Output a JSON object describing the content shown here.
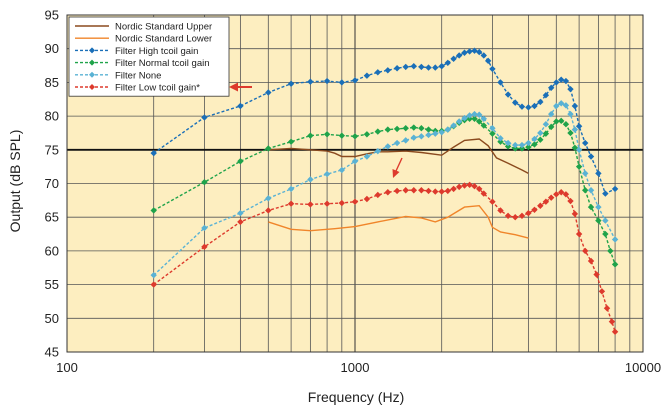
{
  "chart_data": {
    "type": "line",
    "xlabel": "Frequency (Hz)",
    "ylabel": "Output (dB SPL)",
    "x_scale": "log",
    "xlim": [
      100,
      10000
    ],
    "ylim": [
      45,
      95
    ],
    "x_ticks": [
      {
        "value": 100,
        "label": "100"
      },
      {
        "value": 1000,
        "label": "1000"
      },
      {
        "value": 10000,
        "label": "10000"
      }
    ],
    "y_ticks": [
      45,
      50,
      55,
      60,
      65,
      70,
      75,
      80,
      85,
      90,
      95
    ],
    "reference_line": 75,
    "grid": true,
    "legend_position": "top-left",
    "annotations": [
      "arrow-to-legend-low-tcoil",
      "arrow-to-low-tcoil-curve"
    ],
    "colors": {
      "plot_background": "#fdeec0",
      "nordic_upper": "#8b4a1e",
      "nordic_lower": "#f0852a",
      "high": "#1a6fb8",
      "normal": "#1fa34a",
      "none": "#5ab2d4",
      "low": "#dd3a2d",
      "arrow": "#dd3a2d"
    },
    "series": [
      {
        "name": "Nordic Standard Upper",
        "key": "nordic_upper",
        "style": "solid",
        "marker": "none",
        "points": [
          [
            500,
            75
          ],
          [
            600,
            75.2
          ],
          [
            700,
            75
          ],
          [
            800,
            74.8
          ],
          [
            850,
            74.5
          ],
          [
            900,
            74
          ],
          [
            1000,
            74
          ],
          [
            1100,
            74.4
          ],
          [
            1200,
            74.7
          ],
          [
            1300,
            74.7
          ],
          [
            1500,
            74.8
          ],
          [
            1700,
            74.6
          ],
          [
            2000,
            74.2
          ],
          [
            2200,
            75.4
          ],
          [
            2400,
            76.4
          ],
          [
            2700,
            76.6
          ],
          [
            2900,
            75.6
          ],
          [
            3100,
            73.8
          ],
          [
            3400,
            73
          ],
          [
            3800,
            72
          ],
          [
            4000,
            71.5
          ]
        ]
      },
      {
        "name": "Nordic Standard Lower",
        "key": "nordic_lower",
        "style": "solid",
        "marker": "none",
        "points": [
          [
            500,
            64.3
          ],
          [
            600,
            63.2
          ],
          [
            700,
            63
          ],
          [
            850,
            63.3
          ],
          [
            1000,
            63.6
          ],
          [
            1200,
            64.3
          ],
          [
            1500,
            65.1
          ],
          [
            1700,
            64.9
          ],
          [
            1900,
            64.3
          ],
          [
            2100,
            65
          ],
          [
            2400,
            66.5
          ],
          [
            2700,
            66.7
          ],
          [
            2900,
            65
          ],
          [
            3000,
            63.5
          ],
          [
            3200,
            62.8
          ],
          [
            3600,
            62.4
          ],
          [
            4000,
            61.9
          ]
        ]
      },
      {
        "name": "Filter High tcoil gain",
        "key": "high",
        "style": "dashed",
        "marker": "diamond",
        "points": [
          [
            200,
            74.5
          ],
          [
            300,
            79.8
          ],
          [
            400,
            81.5
          ],
          [
            500,
            83.5
          ],
          [
            600,
            84.8
          ],
          [
            700,
            85.1
          ],
          [
            800,
            85.2
          ],
          [
            900,
            85
          ],
          [
            1000,
            85.3
          ],
          [
            1100,
            86
          ],
          [
            1200,
            86.5
          ],
          [
            1300,
            86.8
          ],
          [
            1400,
            87.1
          ],
          [
            1500,
            87.3
          ],
          [
            1600,
            87.4
          ],
          [
            1700,
            87.3
          ],
          [
            1800,
            87.2
          ],
          [
            1900,
            87.2
          ],
          [
            2000,
            87.4
          ],
          [
            2100,
            87.9
          ],
          [
            2200,
            88.5
          ],
          [
            2300,
            89
          ],
          [
            2400,
            89.4
          ],
          [
            2500,
            89.6
          ],
          [
            2600,
            89.7
          ],
          [
            2700,
            89.5
          ],
          [
            2800,
            89
          ],
          [
            2900,
            88.2
          ],
          [
            3000,
            87
          ],
          [
            3200,
            85
          ],
          [
            3400,
            83.2
          ],
          [
            3600,
            82
          ],
          [
            3800,
            81.4
          ],
          [
            4000,
            81.3
          ],
          [
            4200,
            81.5
          ],
          [
            4400,
            82.1
          ],
          [
            4600,
            83.1
          ],
          [
            4800,
            84.2
          ],
          [
            5000,
            85
          ],
          [
            5200,
            85.4
          ],
          [
            5400,
            85.2
          ],
          [
            5600,
            84
          ],
          [
            5800,
            81.5
          ],
          [
            6000,
            78.5
          ],
          [
            6300,
            76
          ],
          [
            6600,
            74
          ],
          [
            7000,
            71.5
          ],
          [
            7400,
            68.5
          ],
          [
            8000,
            69.2
          ]
        ]
      },
      {
        "name": "Filter Normal tcoil gain",
        "key": "normal",
        "style": "dashed",
        "marker": "diamond",
        "points": [
          [
            200,
            66
          ],
          [
            300,
            70.2
          ],
          [
            400,
            73.3
          ],
          [
            500,
            75.2
          ],
          [
            600,
            76.2
          ],
          [
            700,
            77.1
          ],
          [
            800,
            77.3
          ],
          [
            900,
            77.1
          ],
          [
            1000,
            77
          ],
          [
            1100,
            77.3
          ],
          [
            1200,
            77.7
          ],
          [
            1300,
            78
          ],
          [
            1400,
            78.1
          ],
          [
            1500,
            78.2
          ],
          [
            1600,
            78.3
          ],
          [
            1700,
            78.2
          ],
          [
            1800,
            78
          ],
          [
            1900,
            77.8
          ],
          [
            2000,
            77.8
          ],
          [
            2100,
            78
          ],
          [
            2200,
            78.5
          ],
          [
            2300,
            79
          ],
          [
            2400,
            79.4
          ],
          [
            2500,
            79.6
          ],
          [
            2600,
            79.6
          ],
          [
            2700,
            79.2
          ],
          [
            2800,
            78.6
          ],
          [
            3000,
            77.4
          ],
          [
            3200,
            76.2
          ],
          [
            3400,
            75.5
          ],
          [
            3600,
            75.2
          ],
          [
            3800,
            75.2
          ],
          [
            4000,
            75.4
          ],
          [
            4200,
            75.8
          ],
          [
            4400,
            76.5
          ],
          [
            4600,
            77.4
          ],
          [
            4800,
            78.4
          ],
          [
            5000,
            79.2
          ],
          [
            5200,
            79.3
          ],
          [
            5400,
            78.8
          ],
          [
            5600,
            77.5
          ],
          [
            5800,
            75.3
          ],
          [
            6000,
            72.5
          ],
          [
            6300,
            69
          ],
          [
            6600,
            66.5
          ],
          [
            7000,
            64.5
          ],
          [
            7400,
            62.5
          ],
          [
            7700,
            60
          ],
          [
            8000,
            58
          ]
        ]
      },
      {
        "name": "Filter None",
        "key": "none",
        "style": "dashed",
        "marker": "diamond",
        "points": [
          [
            200,
            56.4
          ],
          [
            300,
            63.4
          ],
          [
            400,
            65.6
          ],
          [
            500,
            67.8
          ],
          [
            600,
            69.2
          ],
          [
            700,
            70.6
          ],
          [
            800,
            71.4
          ],
          [
            900,
            72
          ],
          [
            1000,
            73.3
          ],
          [
            1100,
            74
          ],
          [
            1200,
            74.8
          ],
          [
            1300,
            75.5
          ],
          [
            1400,
            76
          ],
          [
            1500,
            76.4
          ],
          [
            1600,
            76.8
          ],
          [
            1700,
            77
          ],
          [
            1800,
            77.2
          ],
          [
            1900,
            77.4
          ],
          [
            2000,
            77.6
          ],
          [
            2100,
            78
          ],
          [
            2200,
            78.6
          ],
          [
            2300,
            79.2
          ],
          [
            2400,
            79.7
          ],
          [
            2500,
            80.1
          ],
          [
            2600,
            80.3
          ],
          [
            2700,
            80.2
          ],
          [
            2800,
            79.6
          ],
          [
            3000,
            78.2
          ],
          [
            3200,
            76.7
          ],
          [
            3400,
            76
          ],
          [
            3600,
            75.7
          ],
          [
            3800,
            75.7
          ],
          [
            4000,
            76
          ],
          [
            4200,
            76.6
          ],
          [
            4400,
            77.5
          ],
          [
            4600,
            78.8
          ],
          [
            4800,
            80.3
          ],
          [
            5000,
            81.5
          ],
          [
            5200,
            81.9
          ],
          [
            5400,
            81.6
          ],
          [
            5600,
            80.3
          ],
          [
            5800,
            78
          ],
          [
            6000,
            75
          ],
          [
            6300,
            71.5
          ],
          [
            6600,
            69
          ],
          [
            7000,
            66.5
          ],
          [
            7400,
            64.5
          ],
          [
            8000,
            61.7
          ]
        ]
      },
      {
        "name": "Filter Low tcoil gain*",
        "key": "low",
        "style": "dashed",
        "marker": "diamond",
        "points": [
          [
            200,
            55
          ],
          [
            300,
            60.6
          ],
          [
            400,
            64.3
          ],
          [
            500,
            66
          ],
          [
            600,
            67
          ],
          [
            700,
            66.9
          ],
          [
            800,
            67
          ],
          [
            900,
            67.1
          ],
          [
            1000,
            67.3
          ],
          [
            1100,
            67.7
          ],
          [
            1200,
            68.3
          ],
          [
            1300,
            68.7
          ],
          [
            1400,
            68.9
          ],
          [
            1500,
            69
          ],
          [
            1600,
            69
          ],
          [
            1700,
            69
          ],
          [
            1800,
            68.9
          ],
          [
            1900,
            68.8
          ],
          [
            2000,
            68.8
          ],
          [
            2100,
            68.9
          ],
          [
            2200,
            69.2
          ],
          [
            2300,
            69.5
          ],
          [
            2400,
            69.7
          ],
          [
            2500,
            69.8
          ],
          [
            2600,
            69.6
          ],
          [
            2700,
            69.2
          ],
          [
            2800,
            68.5
          ],
          [
            3000,
            67.3
          ],
          [
            3200,
            66
          ],
          [
            3400,
            65.2
          ],
          [
            3600,
            65
          ],
          [
            3800,
            65.2
          ],
          [
            4000,
            65.6
          ],
          [
            4200,
            66.1
          ],
          [
            4400,
            66.7
          ],
          [
            4600,
            67.3
          ],
          [
            4800,
            67.9
          ],
          [
            5000,
            68.4
          ],
          [
            5200,
            68.7
          ],
          [
            5400,
            68.4
          ],
          [
            5600,
            67.4
          ],
          [
            5800,
            65.5
          ],
          [
            6000,
            62.5
          ],
          [
            6300,
            60
          ],
          [
            6600,
            58.5
          ],
          [
            6900,
            56.5
          ],
          [
            7200,
            54
          ],
          [
            7500,
            51.5
          ],
          [
            7800,
            49.5
          ],
          [
            8000,
            48
          ]
        ]
      }
    ]
  }
}
